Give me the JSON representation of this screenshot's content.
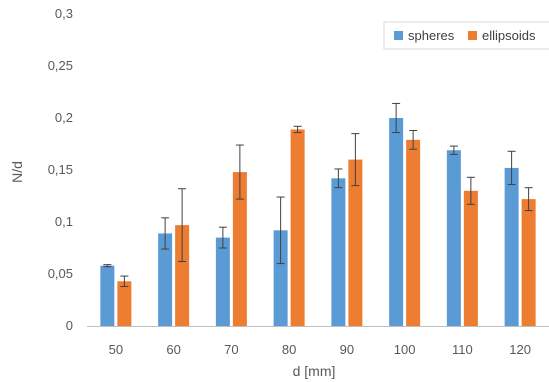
{
  "chart_data": {
    "type": "bar",
    "title": "",
    "xlabel": "d [mm]",
    "ylabel": "N/d",
    "ylim": [
      0,
      0.3
    ],
    "yticks": [
      0,
      0.05,
      0.1,
      0.15,
      0.2,
      0.25,
      0.3
    ],
    "ytick_labels": [
      "0",
      "0,05",
      "0,1",
      "0,15",
      "0,2",
      "0,25",
      "0,3"
    ],
    "categories": [
      "50",
      "60",
      "70",
      "80",
      "90",
      "100",
      "110",
      "120"
    ],
    "grid": false,
    "legend_position": "top-right",
    "series": [
      {
        "name": "spheres",
        "color": "#5B9BD5",
        "values": [
          0.058,
          0.089,
          0.085,
          0.092,
          0.142,
          0.2,
          0.169,
          0.152
        ],
        "error": [
          0.001,
          0.015,
          0.01,
          0.032,
          0.009,
          0.014,
          0.004,
          0.016
        ]
      },
      {
        "name": "ellipsoids",
        "color": "#ED7D31",
        "values": [
          0.043,
          0.097,
          0.148,
          0.189,
          0.16,
          0.179,
          0.13,
          0.122
        ],
        "error": [
          0.005,
          0.035,
          0.026,
          0.003,
          0.025,
          0.009,
          0.013,
          0.011
        ]
      }
    ]
  }
}
